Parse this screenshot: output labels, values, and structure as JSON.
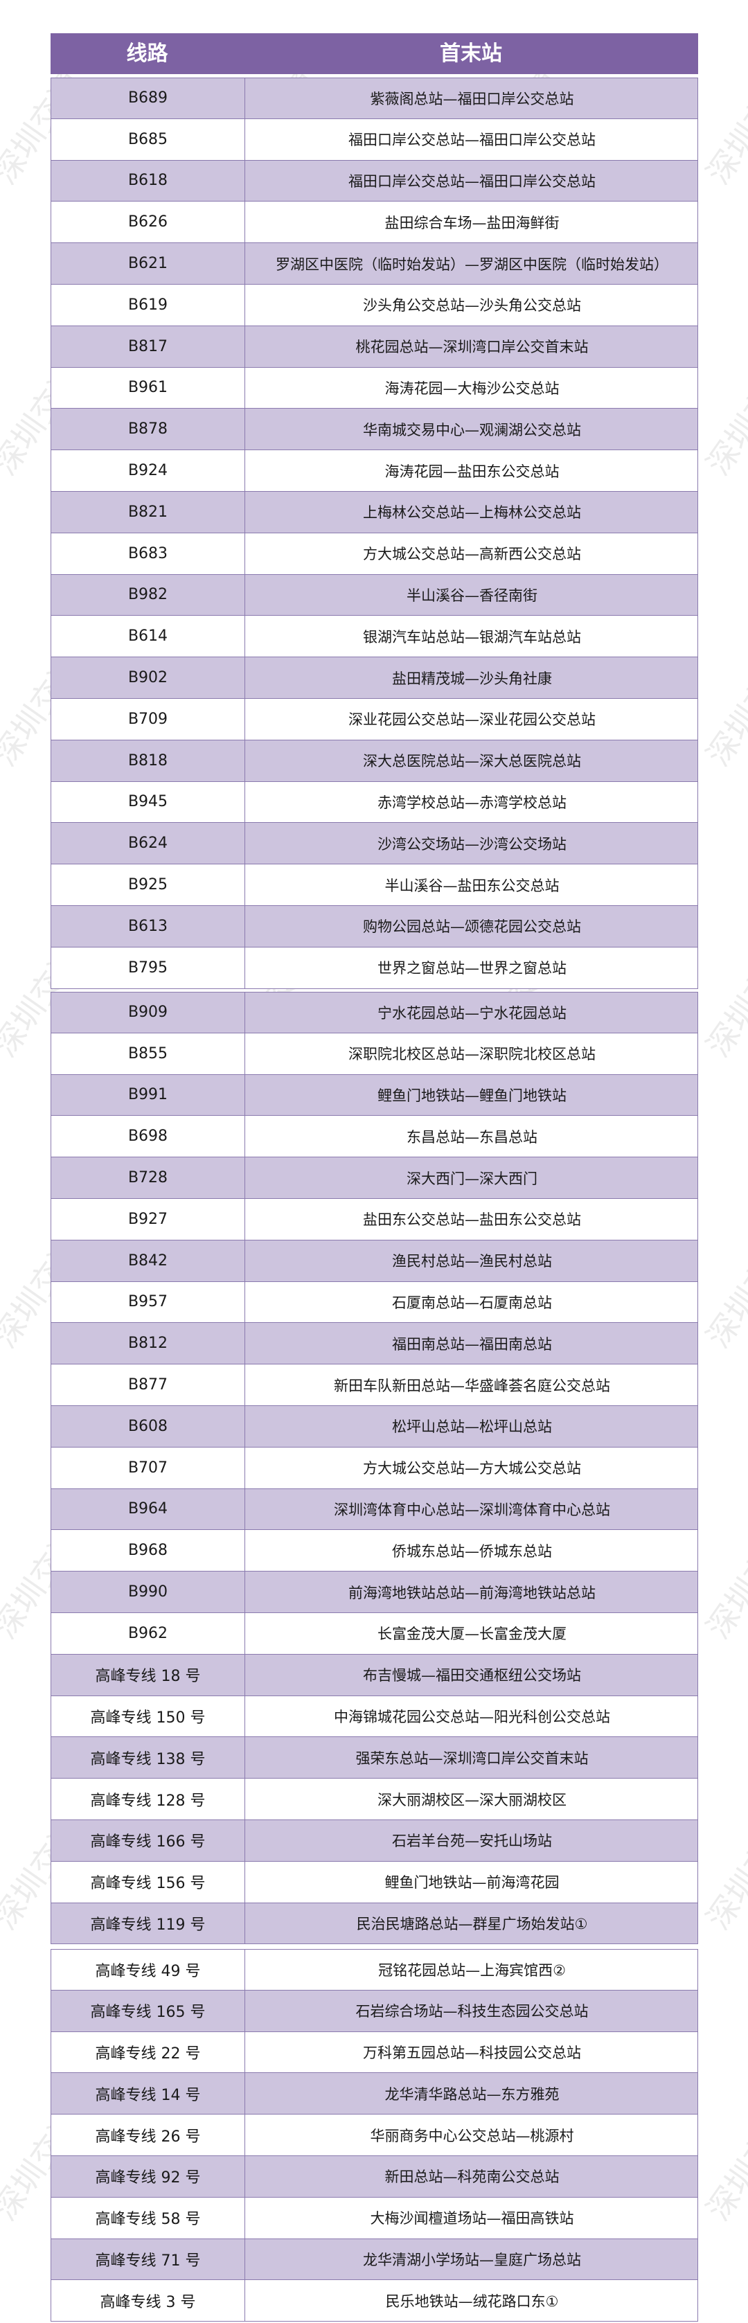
{
  "colors": {
    "header": "#7d62a3",
    "row_alt": "#cdc4de",
    "row": "#ffffff",
    "border": "#8a7aae"
  },
  "watermark": "深圳交通",
  "table": {
    "headers": [
      "线路",
      "首末站"
    ],
    "groups": [
      [
        [
          "B689",
          "紫薇阁总站—福田口岸公交总站"
        ],
        [
          "B685",
          "福田口岸公交总站—福田口岸公交总站"
        ],
        [
          "B618",
          "福田口岸公交总站—福田口岸公交总站"
        ],
        [
          "B626",
          "盐田综合车场—盐田海鲜街"
        ],
        [
          "B621",
          "罗湖区中医院（临时始发站）—罗湖区中医院（临时始发站）"
        ],
        [
          "B619",
          "沙头角公交总站—沙头角公交总站"
        ],
        [
          "B817",
          "桃花园总站—深圳湾口岸公交首末站"
        ],
        [
          "B961",
          "海涛花园—大梅沙公交总站"
        ],
        [
          "B878",
          "华南城交易中心—观澜湖公交总站"
        ],
        [
          "B924",
          "海涛花园—盐田东公交总站"
        ],
        [
          "B821",
          "上梅林公交总站—上梅林公交总站"
        ],
        [
          "B683",
          "方大城公交总站—高新西公交总站"
        ],
        [
          "B982",
          "半山溪谷—香径南街"
        ],
        [
          "B614",
          "银湖汽车站总站—银湖汽车站总站"
        ],
        [
          "B902",
          "盐田精茂城—沙头角社康"
        ],
        [
          "B709",
          "深业花园公交总站—深业花园公交总站"
        ],
        [
          "B818",
          "深大总医院总站—深大总医院总站"
        ],
        [
          "B945",
          "赤湾学校总站—赤湾学校总站"
        ],
        [
          "B624",
          "沙湾公交场站—沙湾公交场站"
        ],
        [
          "B925",
          "半山溪谷—盐田东公交总站"
        ],
        [
          "B613",
          "购物公园总站—颂德花园公交总站"
        ],
        [
          "B795",
          "世界之窗总站—世界之窗总站"
        ]
      ],
      [
        [
          "B909",
          "宁水花园总站—宁水花园总站"
        ],
        [
          "B855",
          "深职院北校区总站—深职院北校区总站"
        ],
        [
          "B991",
          "鲤鱼门地铁站—鲤鱼门地铁站"
        ],
        [
          "B698",
          "东昌总站—东昌总站"
        ],
        [
          "B728",
          "深大西门—深大西门"
        ],
        [
          "B927",
          "盐田东公交总站—盐田东公交总站"
        ],
        [
          "B842",
          "渔民村总站—渔民村总站"
        ],
        [
          "B957",
          "石厦南总站—石厦南总站"
        ],
        [
          "B812",
          "福田南总站—福田南总站"
        ],
        [
          "B877",
          "新田车队新田总站—华盛峰荟名庭公交总站"
        ],
        [
          "B608",
          "松坪山总站—松坪山总站"
        ],
        [
          "B707",
          "方大城公交总站—方大城公交总站"
        ],
        [
          "B964",
          "深圳湾体育中心总站—深圳湾体育中心总站"
        ],
        [
          "B968",
          "侨城东总站—侨城东总站"
        ],
        [
          "B990",
          "前海湾地铁站总站—前海湾地铁站总站"
        ],
        [
          "B962",
          "长富金茂大厦—长富金茂大厦"
        ],
        [
          "高峰专线 18 号",
          "布吉慢城—福田交通枢纽公交场站"
        ],
        [
          "高峰专线 150 号",
          "中海锦城花园公交总站—阳光科创公交总站"
        ],
        [
          "高峰专线 138 号",
          "强荣东总站—深圳湾口岸公交首末站"
        ],
        [
          "高峰专线 128 号",
          "深大丽湖校区—深大丽湖校区"
        ],
        [
          "高峰专线 166 号",
          "石岩羊台苑—安托山场站"
        ],
        [
          "高峰专线 156 号",
          "鲤鱼门地铁站—前海湾花园"
        ],
        [
          "高峰专线 119 号",
          "民治民塘路总站—群星广场始发站①"
        ]
      ],
      [
        [
          "高峰专线 49 号",
          "冠铭花园总站—上海宾馆西②"
        ],
        [
          "高峰专线 165 号",
          "石岩综合场站—科技生态园公交总站"
        ],
        [
          "高峰专线 22 号",
          "万科第五园总站—科技园公交总站"
        ],
        [
          "高峰专线 14 号",
          "龙华清华路总站—东方雅苑"
        ],
        [
          "高峰专线 26 号",
          "华丽商务中心公交总站—桃源村"
        ],
        [
          "高峰专线 92 号",
          "新田总站—科苑南公交总站"
        ],
        [
          "高峰专线 58 号",
          "大梅沙闻檀道场站—福田高铁站"
        ],
        [
          "高峰专线 71 号",
          "龙华清湖小学场站—皇庭广场总站"
        ],
        [
          "高峰专线 3 号",
          "民乐地铁站—绒花路口东①"
        ]
      ]
    ]
  }
}
